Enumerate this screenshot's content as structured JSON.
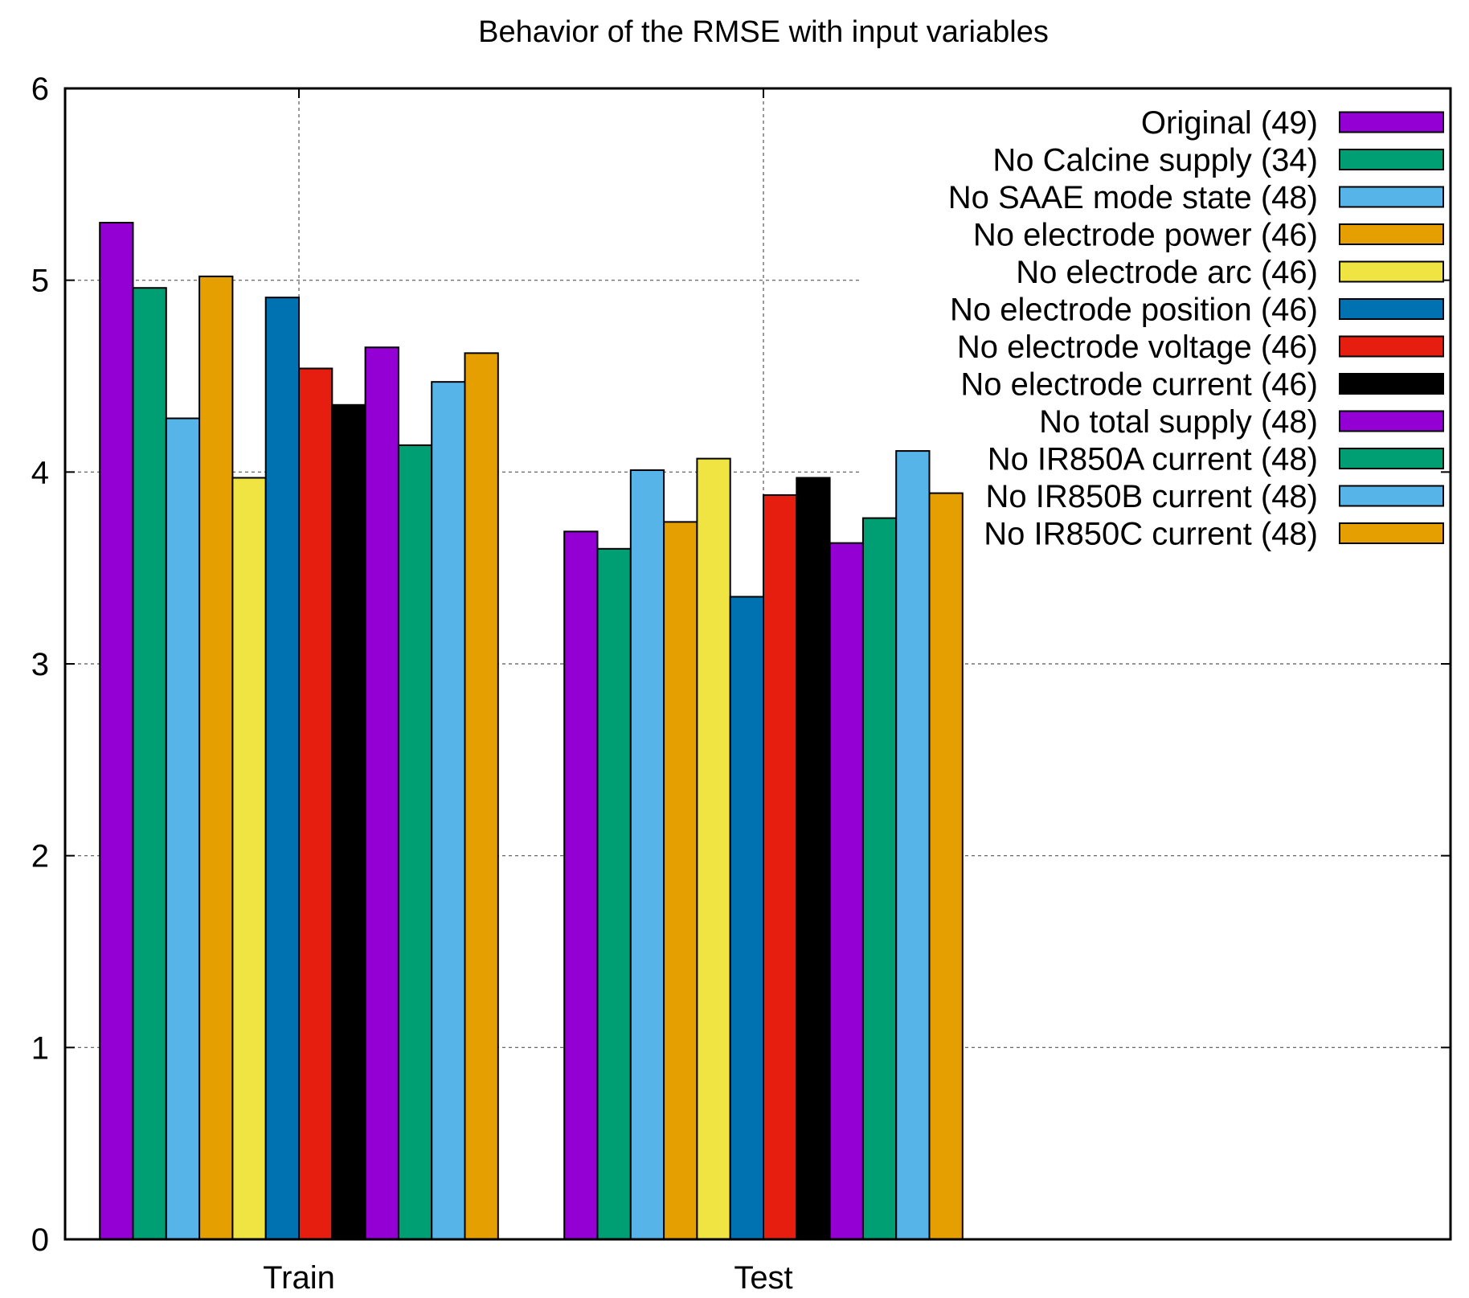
{
  "chart_data": {
    "type": "bar",
    "title": "Behavior of the RMSE with input variables",
    "xlabel": "",
    "ylabel": "",
    "ylim": [
      0,
      6
    ],
    "yticks": [
      0,
      1,
      2,
      3,
      4,
      5,
      6
    ],
    "grid": true,
    "legend_position": "top-right",
    "categories": [
      "Train",
      "Test"
    ],
    "series": [
      {
        "name": "Original (49)",
        "color": "#9400d3",
        "values": [
          5.3,
          3.69
        ]
      },
      {
        "name": "No Calcine supply (34)",
        "color": "#009e73",
        "values": [
          4.96,
          3.6
        ]
      },
      {
        "name": "No SAAE mode state (48)",
        "color": "#56b4e9",
        "values": [
          4.28,
          4.01
        ]
      },
      {
        "name": "No electrode power (46)",
        "color": "#e69f00",
        "values": [
          5.02,
          3.74
        ]
      },
      {
        "name": "No electrode arc (46)",
        "color": "#f0e442",
        "values": [
          3.97,
          4.07
        ]
      },
      {
        "name": "No electrode position (46)",
        "color": "#0072b2",
        "values": [
          4.91,
          3.35
        ]
      },
      {
        "name": "No electrode voltage (46)",
        "color": "#e51e10",
        "values": [
          4.54,
          3.88
        ]
      },
      {
        "name": "No electrode current (46)",
        "color": "#000000",
        "values": [
          4.35,
          3.97
        ]
      },
      {
        "name": "No total supply (48)",
        "color": "#9400d3",
        "values": [
          4.65,
          3.63
        ]
      },
      {
        "name": "No IR850A current (48)",
        "color": "#009e73",
        "values": [
          4.14,
          3.76
        ]
      },
      {
        "name": "No IR850B current (48)",
        "color": "#56b4e9",
        "values": [
          4.47,
          4.11
        ]
      },
      {
        "name": "No IR850C current (48)",
        "color": "#e69f00",
        "values": [
          4.62,
          3.89
        ]
      }
    ]
  }
}
